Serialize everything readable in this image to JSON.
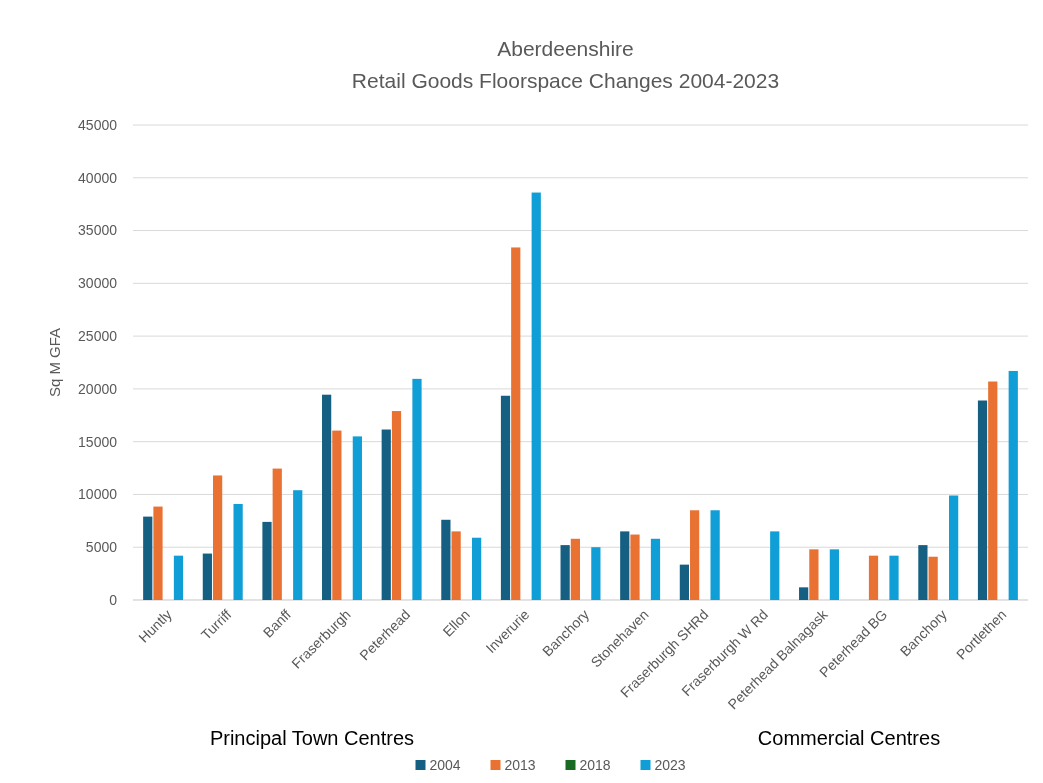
{
  "chart_data": {
    "type": "bar",
    "title": "Aberdeenshire",
    "subtitle": "Retail Goods Floorspace Changes 2004-2023",
    "ylabel": "Sq M GFA",
    "categories": [
      "Huntly",
      "Turriff",
      "Banff",
      "Fraserburgh",
      "Peterhead",
      "Ellon",
      "Inverurie",
      "Banchory",
      "Stonehaven",
      "Fraserburgh SHRd",
      "Fraserburgh W Rd",
      "Peterhead Balnagask",
      "Peterhead BG",
      "Banchory",
      "Portlethen"
    ],
    "series": [
      {
        "name": "2004",
        "color": "#156082",
        "values": [
          7900,
          4400,
          7400,
          19450,
          16150,
          7600,
          19350,
          5200,
          6500,
          3350,
          null,
          1200,
          null,
          5200,
          18900
        ]
      },
      {
        "name": "2013",
        "color": "#e97132",
        "values": [
          8850,
          11800,
          12450,
          16050,
          17900,
          6500,
          33400,
          5800,
          6200,
          8500,
          null,
          4800,
          4200,
          4100,
          20700
        ]
      },
      {
        "name": "2018",
        "color": "#196b24",
        "values": [
          null,
          null,
          null,
          null,
          null,
          null,
          null,
          null,
          null,
          null,
          null,
          null,
          null,
          null,
          null
        ]
      },
      {
        "name": "2023",
        "color": "#0f9ed5",
        "values": [
          4200,
          9100,
          10400,
          15500,
          20950,
          5900,
          38600,
          5000,
          5800,
          8500,
          6500,
          4800,
          4200,
          9900,
          21700
        ]
      }
    ],
    "ylim": [
      0,
      45000
    ],
    "yticks": [
      0,
      5000,
      10000,
      15000,
      20000,
      25000,
      30000,
      35000,
      40000,
      45000
    ],
    "grid": "y",
    "legend": "bottom",
    "annotations": [
      "Principal Town Centres",
      "Commercial Centres"
    ]
  }
}
